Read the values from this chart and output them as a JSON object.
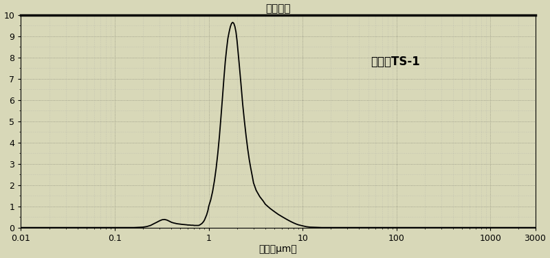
{
  "title": "粒度分布",
  "xlabel": "粒度（μm）",
  "ylabel": "",
  "annotation": "无机法TS-1",
  "ylim": [
    0,
    10
  ],
  "yticks": [
    0,
    1,
    2,
    3,
    4,
    5,
    6,
    7,
    8,
    9,
    10
  ],
  "xtick_labels": [
    "0.01",
    "0.1",
    "1",
    "10",
    "100",
    "1000",
    "3000"
  ],
  "xtick_vals": [
    0.01,
    0.1,
    1,
    10,
    100,
    1000,
    3000
  ],
  "line_color": "#000000",
  "bg_color": "#d8d8b8",
  "grid_major_color": "#888877",
  "grid_minor_color": "#aaaaaa",
  "curve_x": [
    0.01,
    0.02,
    0.03,
    0.05,
    0.07,
    0.09,
    0.1,
    0.12,
    0.14,
    0.16,
    0.18,
    0.2,
    0.22,
    0.24,
    0.26,
    0.28,
    0.3,
    0.32,
    0.34,
    0.36,
    0.38,
    0.4,
    0.42,
    0.44,
    0.46,
    0.48,
    0.5,
    0.52,
    0.55,
    0.58,
    0.6,
    0.62,
    0.65,
    0.68,
    0.7,
    0.72,
    0.75,
    0.78,
    0.8,
    0.82,
    0.85,
    0.88,
    0.9,
    0.92,
    0.95,
    0.98,
    1.0,
    1.05,
    1.1,
    1.15,
    1.2,
    1.25,
    1.3,
    1.35,
    1.4,
    1.45,
    1.5,
    1.55,
    1.6,
    1.65,
    1.7,
    1.75,
    1.8,
    1.85,
    1.9,
    1.95,
    2.0,
    2.1,
    2.2,
    2.3,
    2.4,
    2.5,
    2.6,
    2.7,
    2.8,
    2.9,
    3.0,
    3.2,
    3.5,
    3.8,
    4.0,
    4.5,
    5.0,
    5.5,
    6.0,
    6.5,
    7.0,
    7.5,
    8.0,
    8.5,
    9.0,
    10.0,
    11.0,
    12.0,
    14.0,
    16.0,
    18.0,
    20.0,
    25.0,
    30.0,
    40.0,
    60.0,
    100.0,
    500.0,
    1000.0,
    3000.0
  ],
  "curve_y": [
    0.0,
    0.0,
    0.0,
    0.0,
    0.0,
    0.0,
    0.0,
    0.0,
    0.0,
    0.0,
    0.01,
    0.02,
    0.05,
    0.1,
    0.18,
    0.25,
    0.32,
    0.37,
    0.38,
    0.35,
    0.3,
    0.25,
    0.22,
    0.2,
    0.18,
    0.17,
    0.16,
    0.15,
    0.14,
    0.13,
    0.12,
    0.12,
    0.11,
    0.11,
    0.1,
    0.1,
    0.1,
    0.1,
    0.12,
    0.15,
    0.2,
    0.28,
    0.35,
    0.45,
    0.6,
    0.8,
    1.0,
    1.3,
    1.7,
    2.2,
    2.8,
    3.5,
    4.3,
    5.2,
    6.1,
    7.0,
    7.8,
    8.4,
    8.9,
    9.2,
    9.45,
    9.6,
    9.65,
    9.6,
    9.45,
    9.2,
    8.8,
    7.8,
    6.8,
    5.8,
    5.0,
    4.3,
    3.7,
    3.2,
    2.8,
    2.45,
    2.1,
    1.75,
    1.45,
    1.25,
    1.1,
    0.9,
    0.75,
    0.62,
    0.52,
    0.43,
    0.35,
    0.28,
    0.22,
    0.17,
    0.13,
    0.08,
    0.04,
    0.02,
    0.01,
    0.0,
    0.0,
    0.0,
    0.0,
    0.0,
    0.0,
    0.0,
    0.0,
    0.0,
    0.0,
    0.0
  ]
}
